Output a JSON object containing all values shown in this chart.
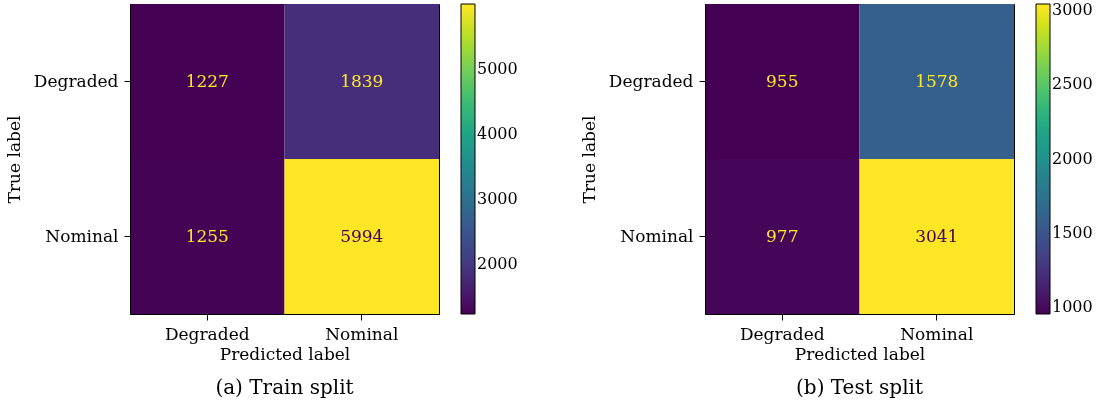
{
  "chart_data": [
    {
      "type": "heatmap",
      "title": "(a) Train split",
      "xlabel": "Predicted label",
      "ylabel": "True label",
      "categories": [
        "Degraded",
        "Nominal"
      ],
      "y_categories": [
        "Degraded",
        "Nominal"
      ],
      "cells": [
        [
          1227,
          1839
        ],
        [
          1255,
          5994
        ]
      ],
      "clim": [
        1227,
        5994
      ],
      "cticks": [
        2000,
        3000,
        4000,
        5000
      ],
      "data_labels": true
    },
    {
      "type": "heatmap",
      "title": "(b) Test split",
      "xlabel": "Predicted label",
      "ylabel": "True label",
      "categories": [
        "Degraded",
        "Nominal"
      ],
      "y_categories": [
        "Degraded",
        "Nominal"
      ],
      "cells": [
        [
          955,
          1578
        ],
        [
          977,
          3041
        ]
      ],
      "clim": [
        955,
        3041
      ],
      "cticks": [
        1000,
        1500,
        2000,
        2500,
        3000
      ],
      "data_labels": true
    }
  ]
}
